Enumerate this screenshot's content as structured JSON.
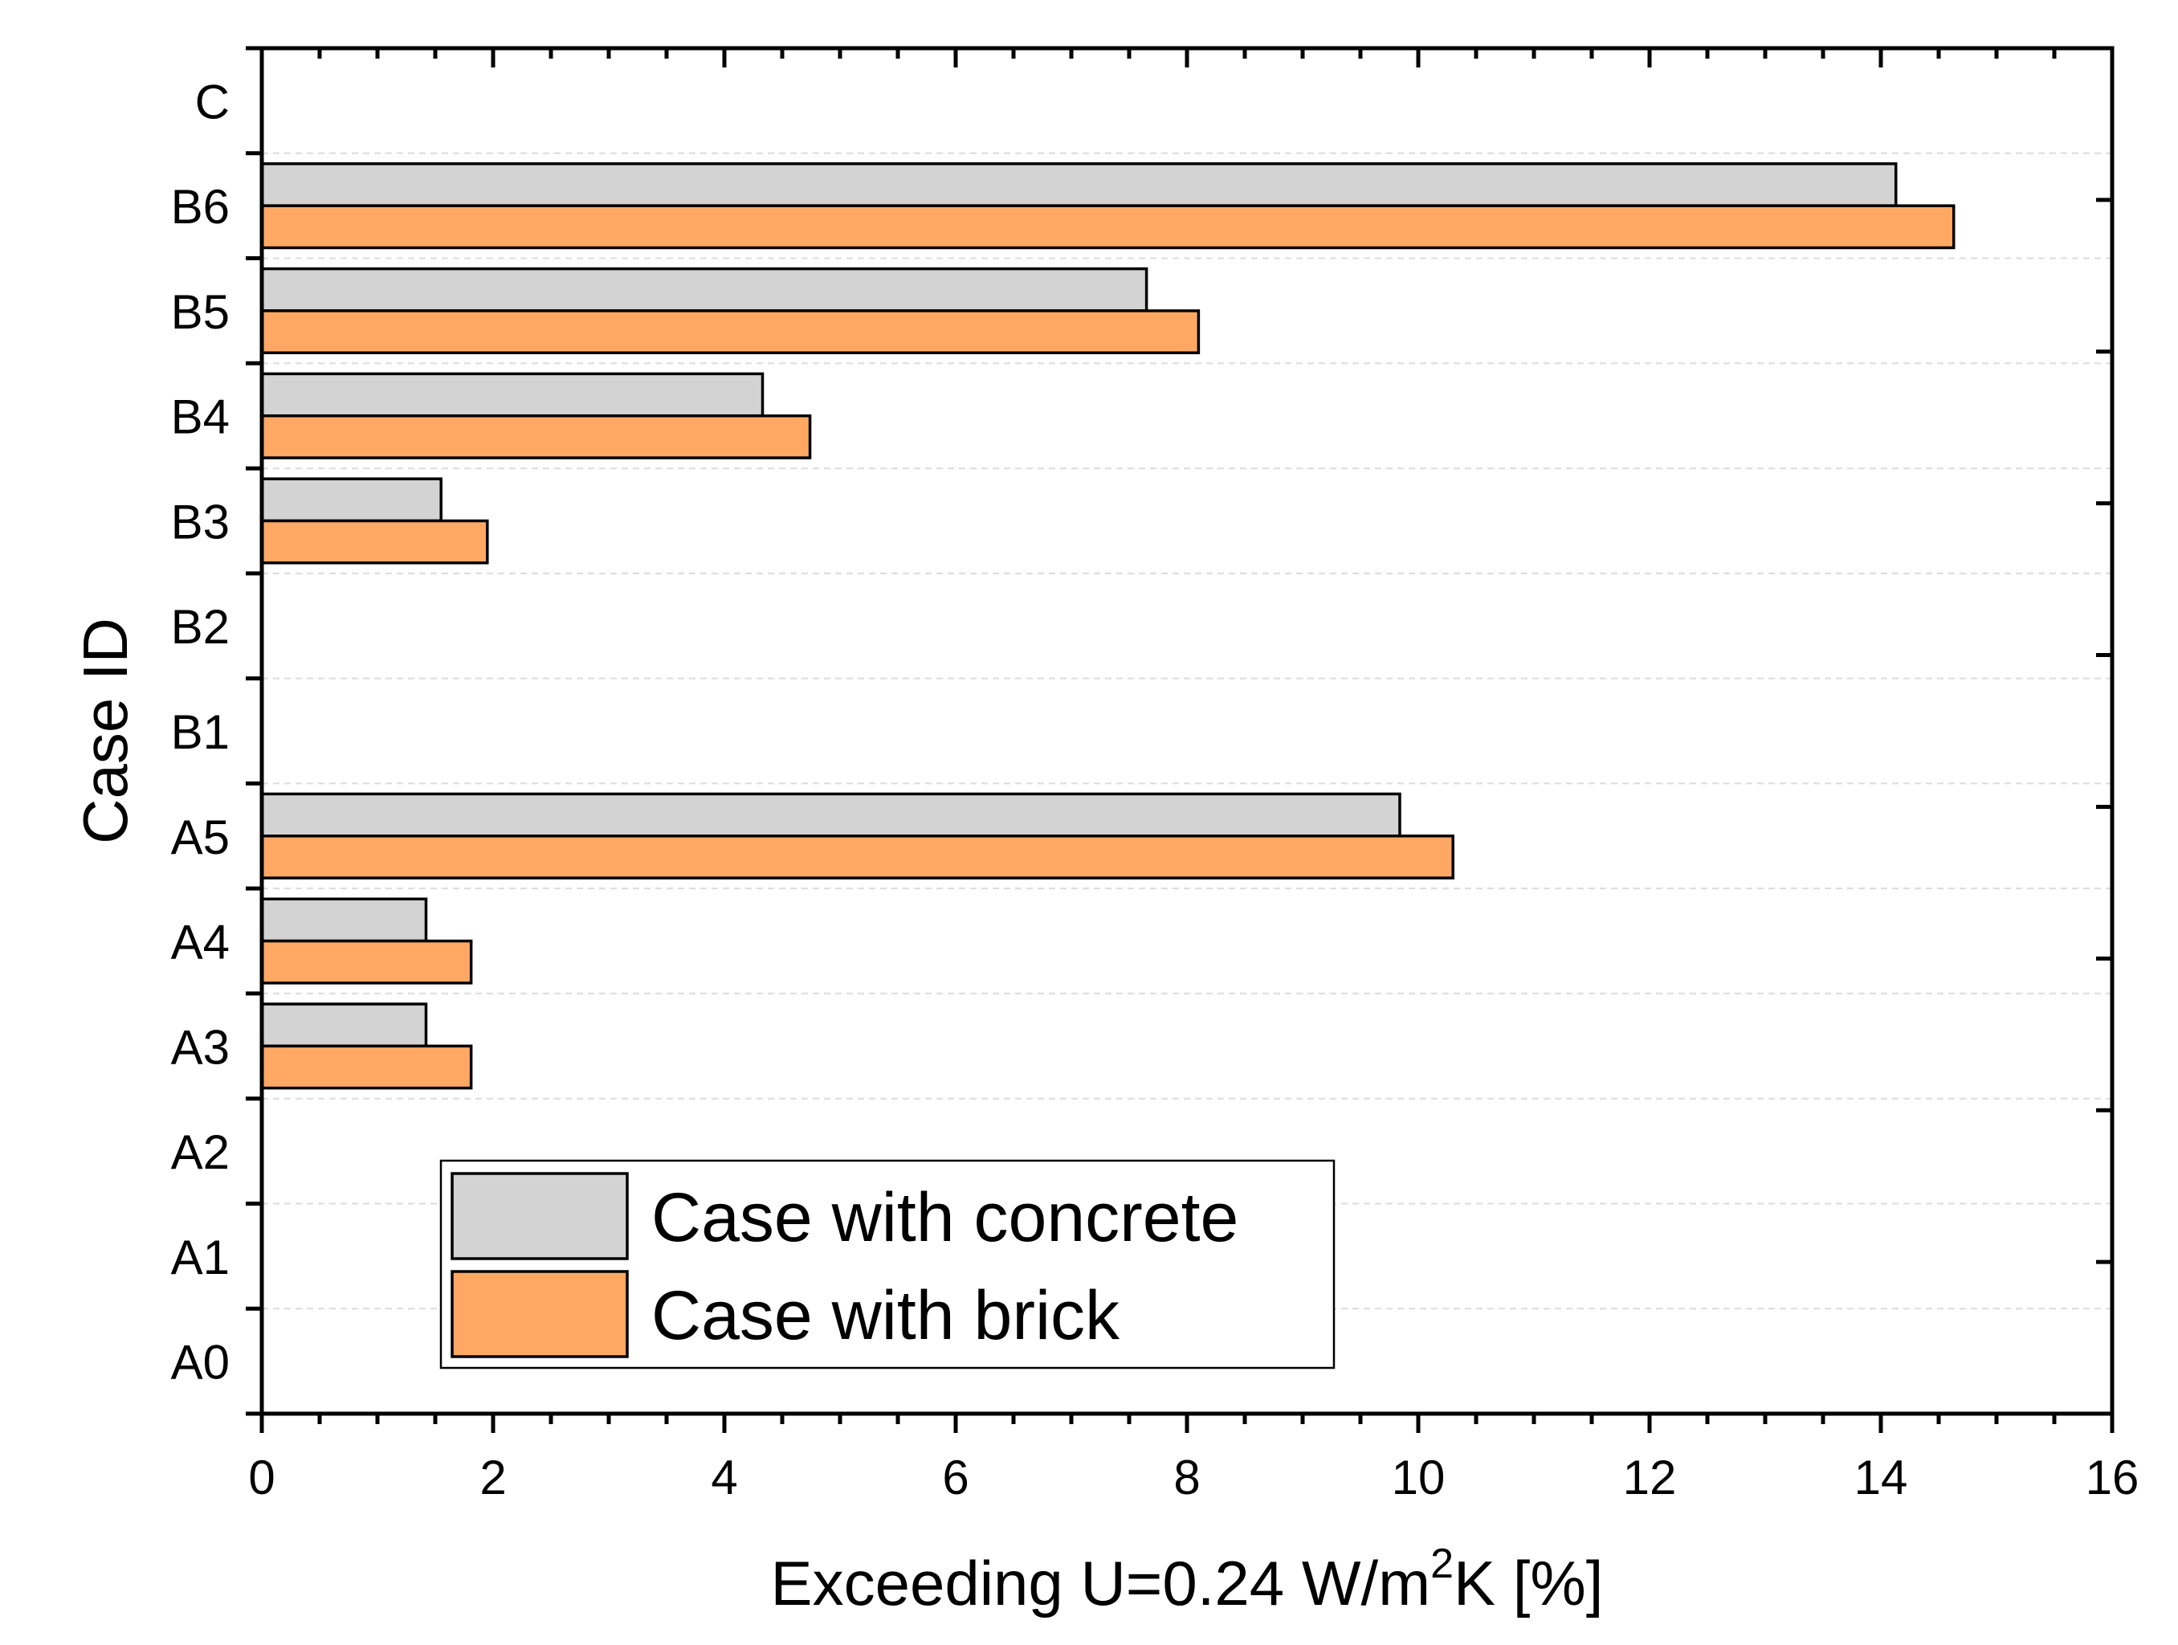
{
  "chart_data": {
    "type": "bar",
    "orientation": "horizontal",
    "categories": [
      "C",
      "B6",
      "B5",
      "B4",
      "B3",
      "B2",
      "B1",
      "A5",
      "A4",
      "A3",
      "A2",
      "A1",
      "A0"
    ],
    "series": [
      {
        "name": "Case with concrete",
        "color": "#d3d3d3",
        "values": [
          0,
          14.13,
          7.65,
          4.33,
          1.55,
          0,
          0,
          9.84,
          1.42,
          1.42,
          0,
          0,
          0
        ]
      },
      {
        "name": "Case with brick",
        "color": "#ffa864",
        "values": [
          0,
          14.63,
          8.1,
          4.74,
          1.95,
          0,
          0,
          10.3,
          1.81,
          1.81,
          0,
          0,
          0
        ]
      }
    ],
    "xlim": [
      0,
      16
    ],
    "xticks": [
      "0",
      "2",
      "4",
      "6",
      "8",
      "10",
      "12",
      "14",
      "16"
    ],
    "xlabel_prefix": "Exceeding U=0.24 W/m",
    "xlabel_superscript": "2",
    "xlabel_suffix": "K [%]",
    "ylabel": "Case ID",
    "legend_position": "lower-center",
    "grid": "horizontal-dashed"
  }
}
